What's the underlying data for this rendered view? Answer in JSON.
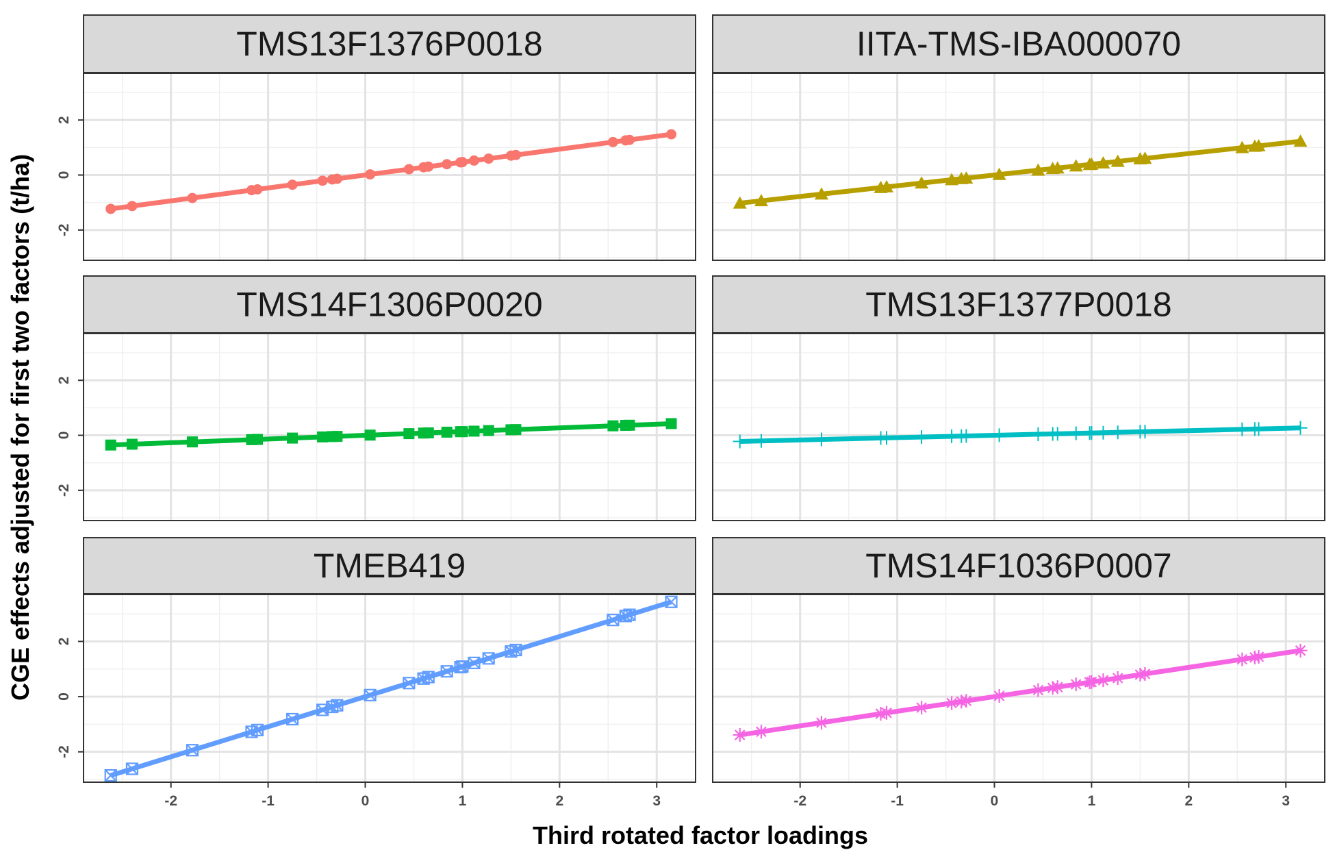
{
  "chart_data": {
    "type": "line",
    "title": "",
    "xlabel": "Third rotated factor loadings",
    "ylabel": "CGE effects adjusted for first two factors (t/ha)",
    "xlim": [
      -2.9,
      3.4
    ],
    "ylim": [
      -3.1,
      3.7
    ],
    "x_ticks": [
      -2,
      -1,
      0,
      1,
      2,
      3
    ],
    "y_ticks": [
      -2,
      0,
      2
    ],
    "grid": true,
    "theme": "bw",
    "x": [
      -2.62,
      -2.4,
      -1.78,
      -1.17,
      -1.11,
      -0.75,
      -0.44,
      -0.34,
      -0.29,
      0.05,
      0.45,
      0.6,
      0.65,
      0.84,
      0.98,
      1.0,
      1.12,
      1.27,
      1.5,
      1.55,
      2.55,
      2.68,
      2.72,
      3.15
    ],
    "panels": [
      {
        "name": "TMS13F1376P0018",
        "color": "#F8766D",
        "shape": "circle",
        "slope": 0.47
      },
      {
        "name": "IITA-TMS-IBA000070",
        "color": "#B79F00",
        "shape": "triangle",
        "slope": 0.39
      },
      {
        "name": "TMS14F1306P0020",
        "color": "#00BA38",
        "shape": "square",
        "slope": 0.135
      },
      {
        "name": "TMS13F1377P0018",
        "color": "#00BFC4",
        "shape": "plus",
        "slope": 0.085
      },
      {
        "name": "TMEB419",
        "color": "#619CFF",
        "shape": "square-cross",
        "slope": 1.09
      },
      {
        "name": "TMS14F1036P0007",
        "color": "#F564E3",
        "shape": "asterisk",
        "slope": 0.53
      }
    ]
  }
}
